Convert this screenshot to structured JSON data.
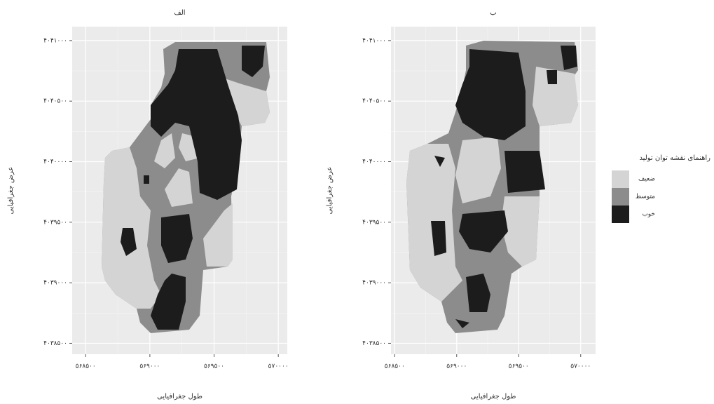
{
  "panels": [
    {
      "title": "الف",
      "x_label": "طول جغرافیایی",
      "y_label": "عرض جغرافیایی",
      "xlim": [
        568395,
        570070
      ],
      "ylim": [
        4038410,
        4041115
      ],
      "xticks": [
        {
          "value": 568500,
          "label": "۵۶۸۵۰۰"
        },
        {
          "value": 569000,
          "label": "۵۶۹۰۰۰"
        },
        {
          "value": 569500,
          "label": "۵۶۹۵۰۰"
        },
        {
          "value": 570000,
          "label": "۵۷۰۰۰۰"
        }
      ],
      "yticks": [
        {
          "value": 4038500,
          "label": "۴۰۳۸۵۰۰"
        },
        {
          "value": 4039000,
          "label": "۴۰۳۹۰۰۰"
        },
        {
          "value": 4039500,
          "label": "۴۰۳۹۵۰۰"
        },
        {
          "value": 4040000,
          "label": "۴۰۴۰۰۰۰"
        },
        {
          "value": 4040500,
          "label": "۴۰۴۰۵۰۰"
        },
        {
          "value": 4041000,
          "label": "۴۰۴۱۰۰۰"
        }
      ]
    },
    {
      "title": "ب",
      "x_label": "طول جغرافیایی",
      "y_label": "عرض جغرافیایی",
      "xlim": [
        568470,
        570120
      ],
      "ylim": [
        4038410,
        4041115
      ],
      "xticks": [
        {
          "value": 568500,
          "label": "۵۶۸۵۰۰"
        },
        {
          "value": 569000,
          "label": "۵۶۹۰۰۰"
        },
        {
          "value": 569500,
          "label": "۵۶۹۵۰۰"
        },
        {
          "value": 570000,
          "label": "۵۷۰۰۰۰"
        }
      ],
      "yticks": [
        {
          "value": 4038500,
          "label": "۴۰۳۸۵۰۰"
        },
        {
          "value": 4039000,
          "label": "۴۰۳۹۰۰۰"
        },
        {
          "value": 4039500,
          "label": "۴۰۳۹۵۰۰"
        },
        {
          "value": 4040000,
          "label": "۴۰۴۰۰۰۰"
        },
        {
          "value": 4040500,
          "label": "۴۰۴۰۵۰۰"
        },
        {
          "value": 4041000,
          "label": "۴۰۴۱۰۰۰"
        }
      ]
    }
  ],
  "legend": {
    "title": "راهنمای نقشه توان تولید",
    "items": [
      {
        "label": "ضعیف",
        "color": "#d4d4d4"
      },
      {
        "label": "متوسط",
        "color": "#8c8c8c"
      },
      {
        "label": "خوب",
        "color": "#1c1c1c"
      }
    ]
  }
}
